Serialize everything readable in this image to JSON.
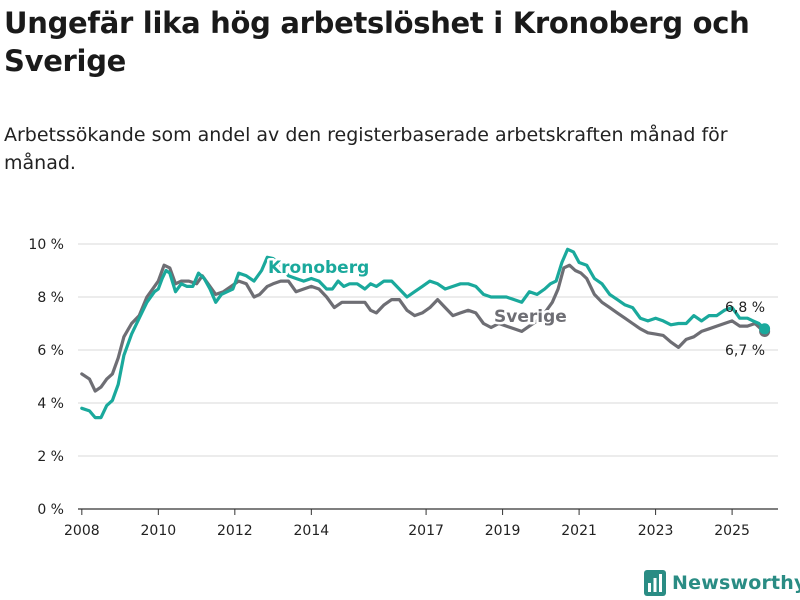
{
  "title": "Ungefär lika hög arbetslöshet i Kronoberg och Sverige",
  "subtitle": "Arbetssökande som andel av den registerbaserade arbetskraften månad för månad.",
  "brand": "Newsworthy",
  "colors": {
    "kronoberg": "#1aa99c",
    "sverige": "#6e6e74",
    "grid": "#d9d9d9",
    "axis": "#333333",
    "brand": "#2a8c84"
  },
  "chart_data": {
    "type": "line",
    "title": "Ungefär lika hög arbetslöshet i Kronoberg och Sverige",
    "xlabel": "",
    "ylabel": "",
    "xlim": [
      2007.9,
      2026.2
    ],
    "ylim": [
      0,
      10
    ],
    "x_ticks": [
      2008,
      2010,
      2012,
      2014,
      2017,
      2019,
      2021,
      2023,
      2025
    ],
    "y_ticks": [
      {
        "value": 0,
        "label": "0 %"
      },
      {
        "value": 2,
        "label": "2 %"
      },
      {
        "value": 4,
        "label": "4 %"
      },
      {
        "value": 6,
        "label": "6 %"
      },
      {
        "value": 8,
        "label": "8 %"
      },
      {
        "value": 10,
        "label": "10 %"
      }
    ],
    "series": [
      {
        "name": "Kronoberg",
        "label": "Kronoberg",
        "end_label": "6,8 %",
        "points": [
          [
            2008.0,
            3.8
          ],
          [
            2008.2,
            3.7
          ],
          [
            2008.35,
            3.45
          ],
          [
            2008.5,
            3.45
          ],
          [
            2008.65,
            3.9
          ],
          [
            2008.8,
            4.1
          ],
          [
            2008.95,
            4.7
          ],
          [
            2009.1,
            5.8
          ],
          [
            2009.3,
            6.6
          ],
          [
            2009.5,
            7.2
          ],
          [
            2009.7,
            7.8
          ],
          [
            2009.9,
            8.2
          ],
          [
            2010.0,
            8.3
          ],
          [
            2010.1,
            8.7
          ],
          [
            2010.2,
            9.0
          ],
          [
            2010.3,
            8.9
          ],
          [
            2010.45,
            8.2
          ],
          [
            2010.6,
            8.5
          ],
          [
            2010.75,
            8.4
          ],
          [
            2010.9,
            8.4
          ],
          [
            2011.05,
            8.9
          ],
          [
            2011.2,
            8.7
          ],
          [
            2011.35,
            8.3
          ],
          [
            2011.5,
            7.8
          ],
          [
            2011.65,
            8.1
          ],
          [
            2011.8,
            8.2
          ],
          [
            2011.95,
            8.3
          ],
          [
            2012.1,
            8.9
          ],
          [
            2012.3,
            8.8
          ],
          [
            2012.5,
            8.6
          ],
          [
            2012.7,
            9.0
          ],
          [
            2012.85,
            9.5
          ],
          [
            2013.0,
            9.45
          ],
          [
            2013.2,
            9.2
          ],
          [
            2013.4,
            8.8
          ],
          [
            2013.6,
            8.7
          ],
          [
            2013.8,
            8.6
          ],
          [
            2014.0,
            8.7
          ],
          [
            2014.2,
            8.6
          ],
          [
            2014.4,
            8.3
          ],
          [
            2014.55,
            8.3
          ],
          [
            2014.7,
            8.6
          ],
          [
            2014.85,
            8.4
          ],
          [
            2015.0,
            8.5
          ],
          [
            2015.2,
            8.5
          ],
          [
            2015.4,
            8.3
          ],
          [
            2015.55,
            8.5
          ],
          [
            2015.7,
            8.4
          ],
          [
            2015.9,
            8.6
          ],
          [
            2016.1,
            8.6
          ],
          [
            2016.3,
            8.3
          ],
          [
            2016.5,
            8.0
          ],
          [
            2016.7,
            8.2
          ],
          [
            2016.9,
            8.4
          ],
          [
            2017.1,
            8.6
          ],
          [
            2017.3,
            8.5
          ],
          [
            2017.5,
            8.3
          ],
          [
            2017.7,
            8.4
          ],
          [
            2017.9,
            8.5
          ],
          [
            2018.1,
            8.5
          ],
          [
            2018.3,
            8.4
          ],
          [
            2018.5,
            8.1
          ],
          [
            2018.7,
            8.0
          ],
          [
            2018.9,
            8.0
          ],
          [
            2019.1,
            8.0
          ],
          [
            2019.3,
            7.9
          ],
          [
            2019.5,
            7.8
          ],
          [
            2019.7,
            8.2
          ],
          [
            2019.9,
            8.1
          ],
          [
            2020.1,
            8.3
          ],
          [
            2020.25,
            8.5
          ],
          [
            2020.4,
            8.6
          ],
          [
            2020.55,
            9.3
          ],
          [
            2020.7,
            9.8
          ],
          [
            2020.85,
            9.7
          ],
          [
            2021.0,
            9.3
          ],
          [
            2021.2,
            9.2
          ],
          [
            2021.4,
            8.7
          ],
          [
            2021.6,
            8.5
          ],
          [
            2021.8,
            8.1
          ],
          [
            2022.0,
            7.9
          ],
          [
            2022.2,
            7.7
          ],
          [
            2022.4,
            7.6
          ],
          [
            2022.6,
            7.2
          ],
          [
            2022.8,
            7.1
          ],
          [
            2023.0,
            7.2
          ],
          [
            2023.2,
            7.1
          ],
          [
            2023.4,
            6.95
          ],
          [
            2023.6,
            7.0
          ],
          [
            2023.8,
            7.0
          ],
          [
            2024.0,
            7.3
          ],
          [
            2024.2,
            7.1
          ],
          [
            2024.4,
            7.3
          ],
          [
            2024.6,
            7.3
          ],
          [
            2024.8,
            7.5
          ],
          [
            2025.0,
            7.6
          ],
          [
            2025.2,
            7.2
          ],
          [
            2025.4,
            7.2
          ],
          [
            2025.55,
            7.1
          ],
          [
            2025.7,
            7.0
          ],
          [
            2025.85,
            6.8
          ]
        ]
      },
      {
        "name": "Sverige",
        "label": "Sverige",
        "end_label": "6,7 %",
        "points": [
          [
            2008.0,
            5.1
          ],
          [
            2008.2,
            4.9
          ],
          [
            2008.35,
            4.45
          ],
          [
            2008.5,
            4.6
          ],
          [
            2008.65,
            4.9
          ],
          [
            2008.8,
            5.1
          ],
          [
            2008.95,
            5.7
          ],
          [
            2009.1,
            6.5
          ],
          [
            2009.3,
            7.0
          ],
          [
            2009.5,
            7.3
          ],
          [
            2009.7,
            8.0
          ],
          [
            2009.9,
            8.4
          ],
          [
            2010.0,
            8.6
          ],
          [
            2010.15,
            9.2
          ],
          [
            2010.3,
            9.1
          ],
          [
            2010.45,
            8.5
          ],
          [
            2010.6,
            8.6
          ],
          [
            2010.8,
            8.6
          ],
          [
            2011.0,
            8.5
          ],
          [
            2011.15,
            8.8
          ],
          [
            2011.3,
            8.5
          ],
          [
            2011.5,
            8.1
          ],
          [
            2011.7,
            8.2
          ],
          [
            2011.9,
            8.4
          ],
          [
            2012.1,
            8.6
          ],
          [
            2012.3,
            8.5
          ],
          [
            2012.5,
            8.0
          ],
          [
            2012.65,
            8.1
          ],
          [
            2012.85,
            8.4
          ],
          [
            2013.0,
            8.5
          ],
          [
            2013.2,
            8.6
          ],
          [
            2013.4,
            8.6
          ],
          [
            2013.6,
            8.2
          ],
          [
            2013.8,
            8.3
          ],
          [
            2014.0,
            8.4
          ],
          [
            2014.2,
            8.3
          ],
          [
            2014.4,
            8.0
          ],
          [
            2014.6,
            7.6
          ],
          [
            2014.8,
            7.8
          ],
          [
            2015.0,
            7.8
          ],
          [
            2015.2,
            7.8
          ],
          [
            2015.4,
            7.8
          ],
          [
            2015.55,
            7.5
          ],
          [
            2015.7,
            7.4
          ],
          [
            2015.9,
            7.7
          ],
          [
            2016.1,
            7.9
          ],
          [
            2016.3,
            7.9
          ],
          [
            2016.5,
            7.5
          ],
          [
            2016.7,
            7.3
          ],
          [
            2016.9,
            7.4
          ],
          [
            2017.1,
            7.6
          ],
          [
            2017.3,
            7.9
          ],
          [
            2017.5,
            7.6
          ],
          [
            2017.7,
            7.3
          ],
          [
            2017.9,
            7.4
          ],
          [
            2018.1,
            7.5
          ],
          [
            2018.3,
            7.4
          ],
          [
            2018.5,
            7.0
          ],
          [
            2018.7,
            6.85
          ],
          [
            2018.9,
            7.0
          ],
          [
            2019.1,
            6.9
          ],
          [
            2019.3,
            6.8
          ],
          [
            2019.5,
            6.7
          ],
          [
            2019.7,
            6.9
          ],
          [
            2019.9,
            7.1
          ],
          [
            2020.1,
            7.4
          ],
          [
            2020.3,
            7.8
          ],
          [
            2020.45,
            8.3
          ],
          [
            2020.6,
            9.1
          ],
          [
            2020.75,
            9.2
          ],
          [
            2020.9,
            9.0
          ],
          [
            2021.05,
            8.9
          ],
          [
            2021.2,
            8.7
          ],
          [
            2021.4,
            8.1
          ],
          [
            2021.6,
            7.8
          ],
          [
            2021.8,
            7.6
          ],
          [
            2022.0,
            7.4
          ],
          [
            2022.2,
            7.2
          ],
          [
            2022.4,
            7.0
          ],
          [
            2022.6,
            6.8
          ],
          [
            2022.8,
            6.65
          ],
          [
            2023.0,
            6.6
          ],
          [
            2023.2,
            6.55
          ],
          [
            2023.4,
            6.3
          ],
          [
            2023.6,
            6.1
          ],
          [
            2023.8,
            6.4
          ],
          [
            2024.0,
            6.5
          ],
          [
            2024.2,
            6.7
          ],
          [
            2024.4,
            6.8
          ],
          [
            2024.6,
            6.9
          ],
          [
            2024.8,
            7.0
          ],
          [
            2025.0,
            7.1
          ],
          [
            2025.2,
            6.9
          ],
          [
            2025.4,
            6.9
          ],
          [
            2025.6,
            7.0
          ],
          [
            2025.75,
            6.8
          ],
          [
            2025.85,
            6.7
          ]
        ]
      }
    ]
  }
}
